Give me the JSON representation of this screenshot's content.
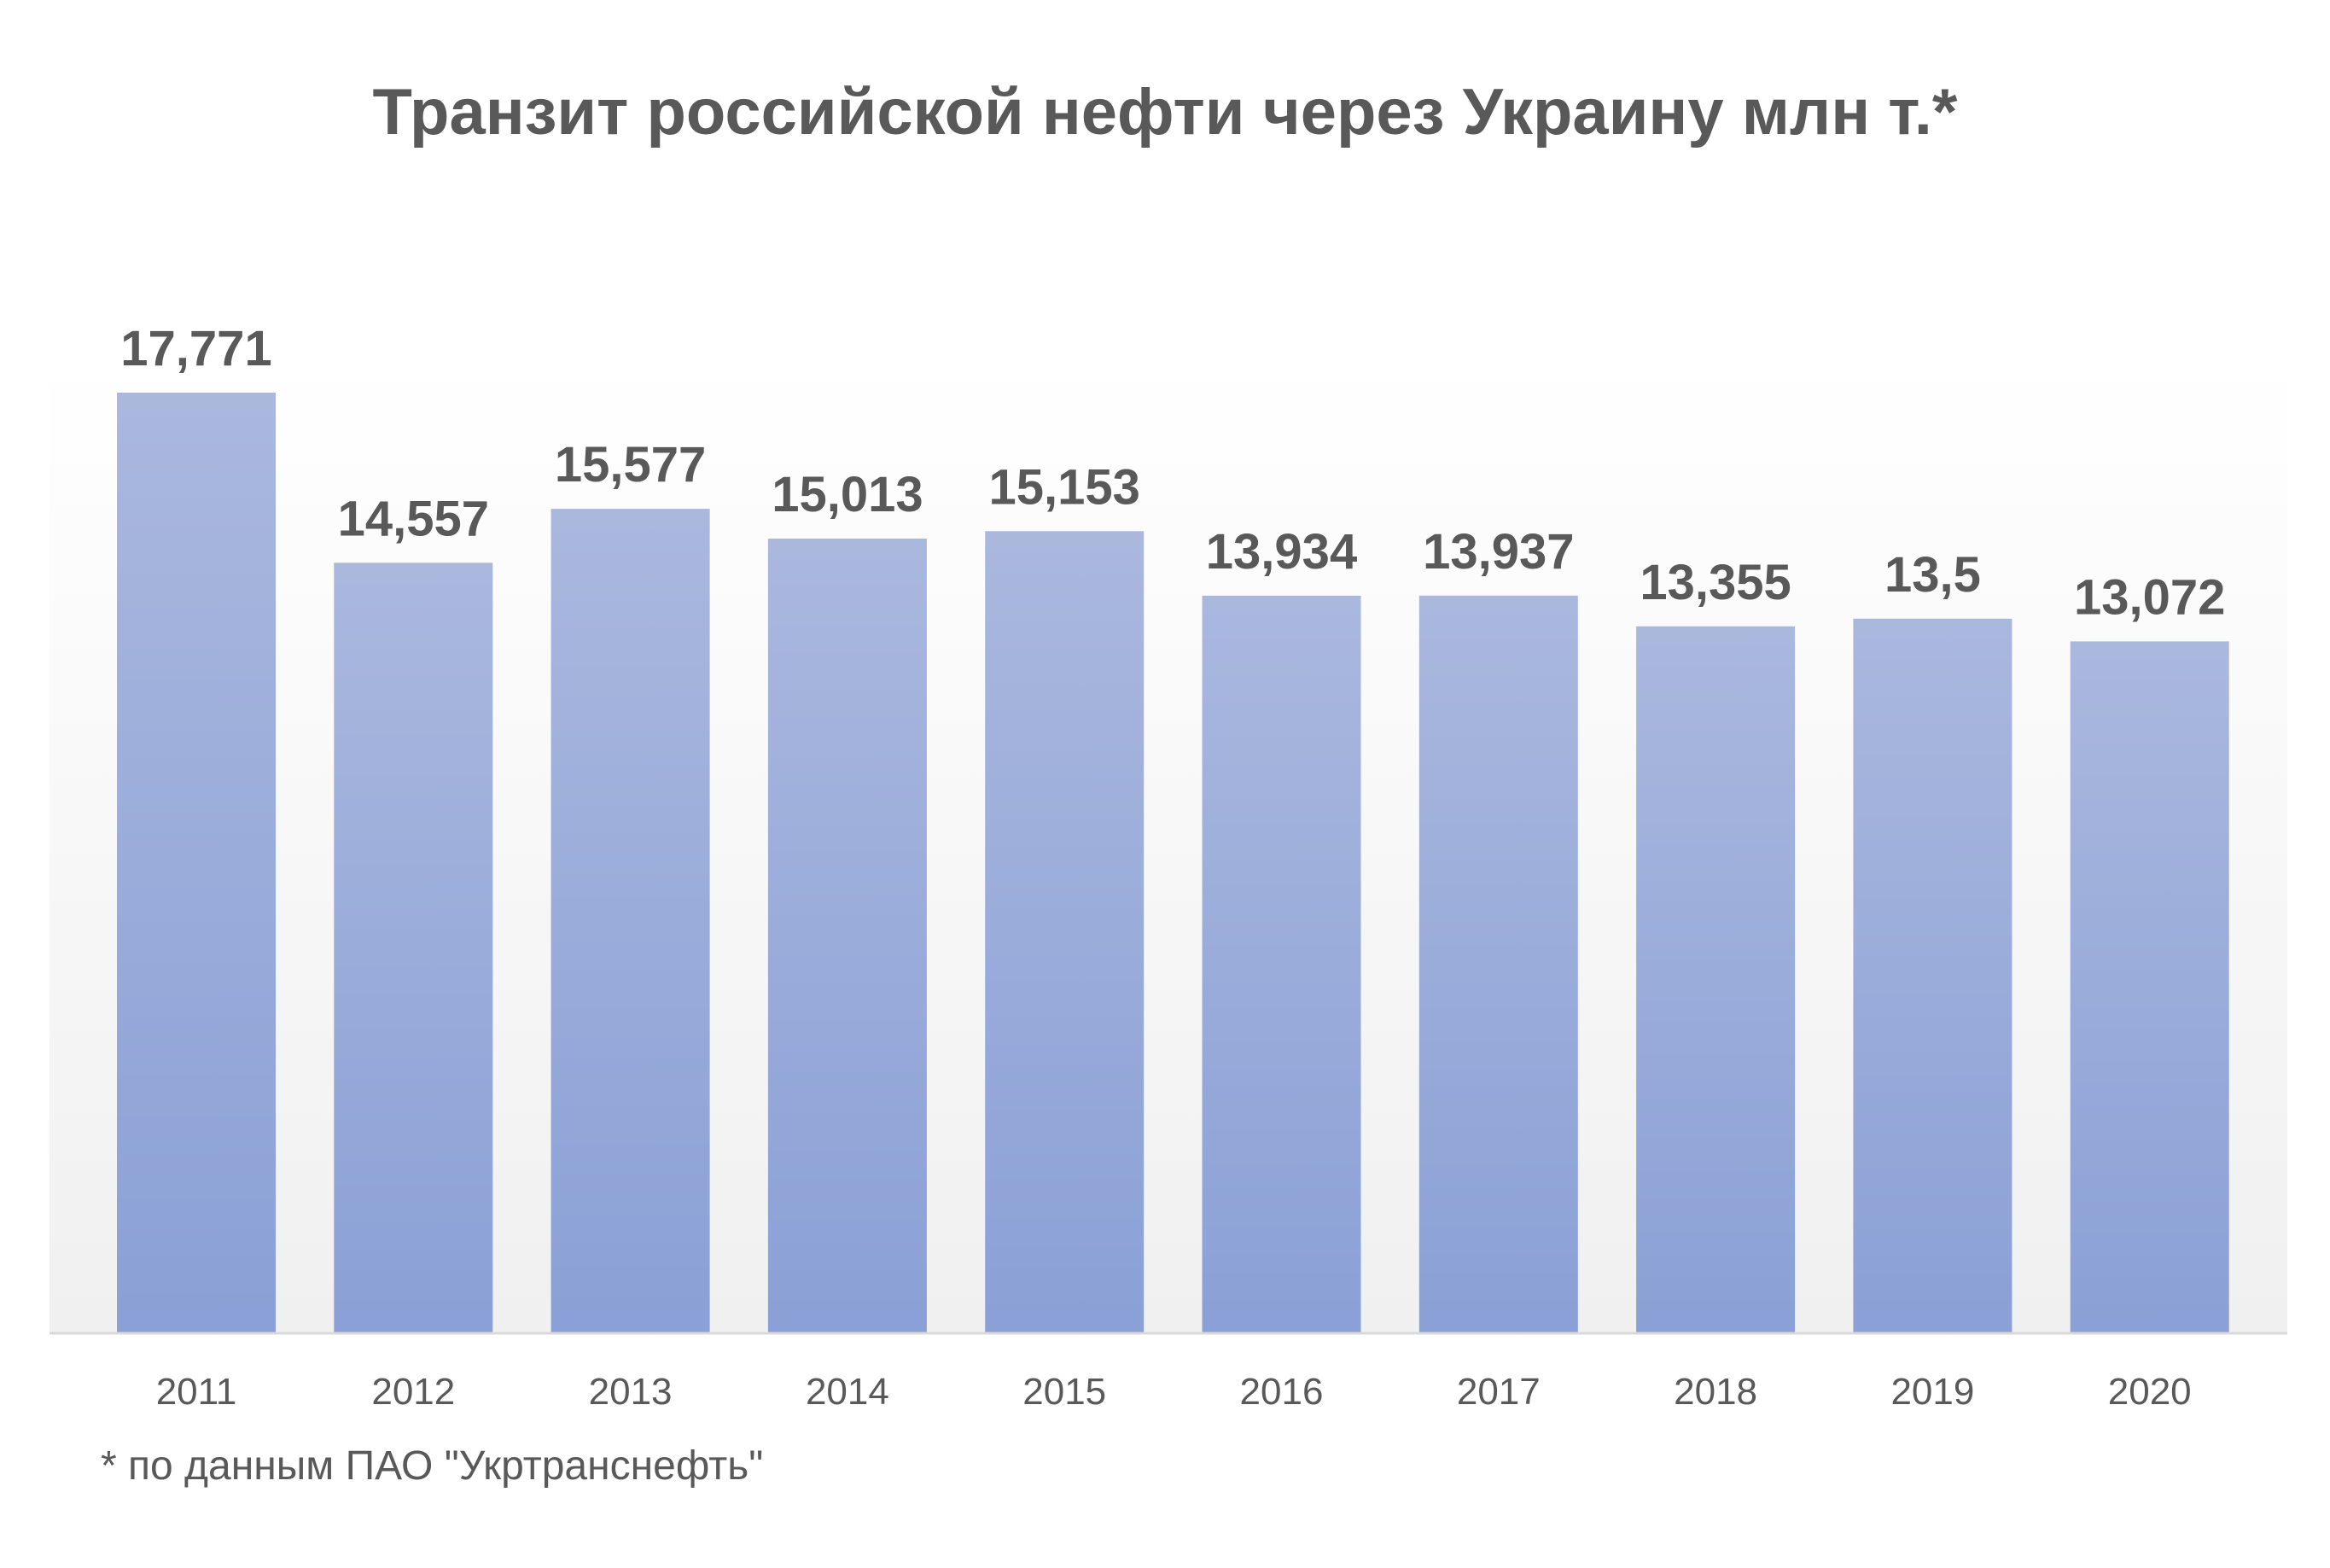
{
  "chart_data": {
    "type": "bar",
    "title": "Транзит российской нефти через Украину млн т.*",
    "xlabel": "",
    "ylabel": "",
    "categories": [
      "2011",
      "2012",
      "2013",
      "2014",
      "2015",
      "2016",
      "2017",
      "2018",
      "2019",
      "2020"
    ],
    "values": [
      17.771,
      14.557,
      15.577,
      15.013,
      15.153,
      13.934,
      13.937,
      13.355,
      13.5,
      13.072
    ],
    "data_labels": [
      "17,771",
      "14,557",
      "15,577",
      "15,013",
      "15,153",
      "13,934",
      "13,937",
      "13,355",
      "13,5",
      "13,072"
    ],
    "ylim": [
      0,
      20
    ],
    "grid": false,
    "legend": "none",
    "colors": {
      "bar_top": "#aab8de",
      "bar_bottom": "#8aa0d6",
      "label": "#595959",
      "axis": "#d9d9d9"
    }
  },
  "footnote": "* по данным ПАО \"Укртранснефть\""
}
